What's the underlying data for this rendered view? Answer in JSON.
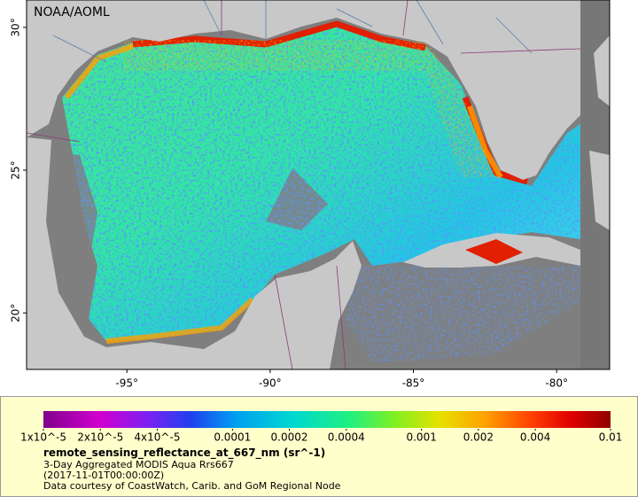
{
  "map": {
    "watermark": "NOAA/AOML",
    "lon_range": [
      -98.5,
      -78.15
    ],
    "lat_range": [
      18.02,
      30.96
    ],
    "lon_ticks": [
      {
        "value": -95,
        "label": "-95°"
      },
      {
        "value": -90,
        "label": "-90°"
      },
      {
        "value": -85,
        "label": "-85°"
      },
      {
        "value": -80,
        "label": "-80°"
      }
    ],
    "lat_ticks": [
      {
        "value": 20,
        "label": "20°"
      },
      {
        "value": 25,
        "label": "25°"
      },
      {
        "value": 30,
        "label": "30°"
      }
    ]
  },
  "colorbar": {
    "range": [
      1e-05,
      0.01
    ],
    "scale": "log",
    "ticks": [
      {
        "value": 1e-05,
        "label": "1x10^-5"
      },
      {
        "value": 2e-05,
        "label": "2x10^-5"
      },
      {
        "value": 4e-05,
        "label": "4x10^-5"
      },
      0.0001,
      0.0002,
      0.0004,
      0.001,
      0.002,
      0.004,
      0.01
    ]
  },
  "caption": {
    "variable": "remote_sensing_reflectance_at_667_nm (sr^-1)",
    "lines": [
      "3-Day Aggregated MODIS Aqua Rrs667",
      "(2017-11-01T00:00:00Z)",
      "Data courtesy of CoastWatch, Carib. and GoM Regional Node"
    ]
  }
}
